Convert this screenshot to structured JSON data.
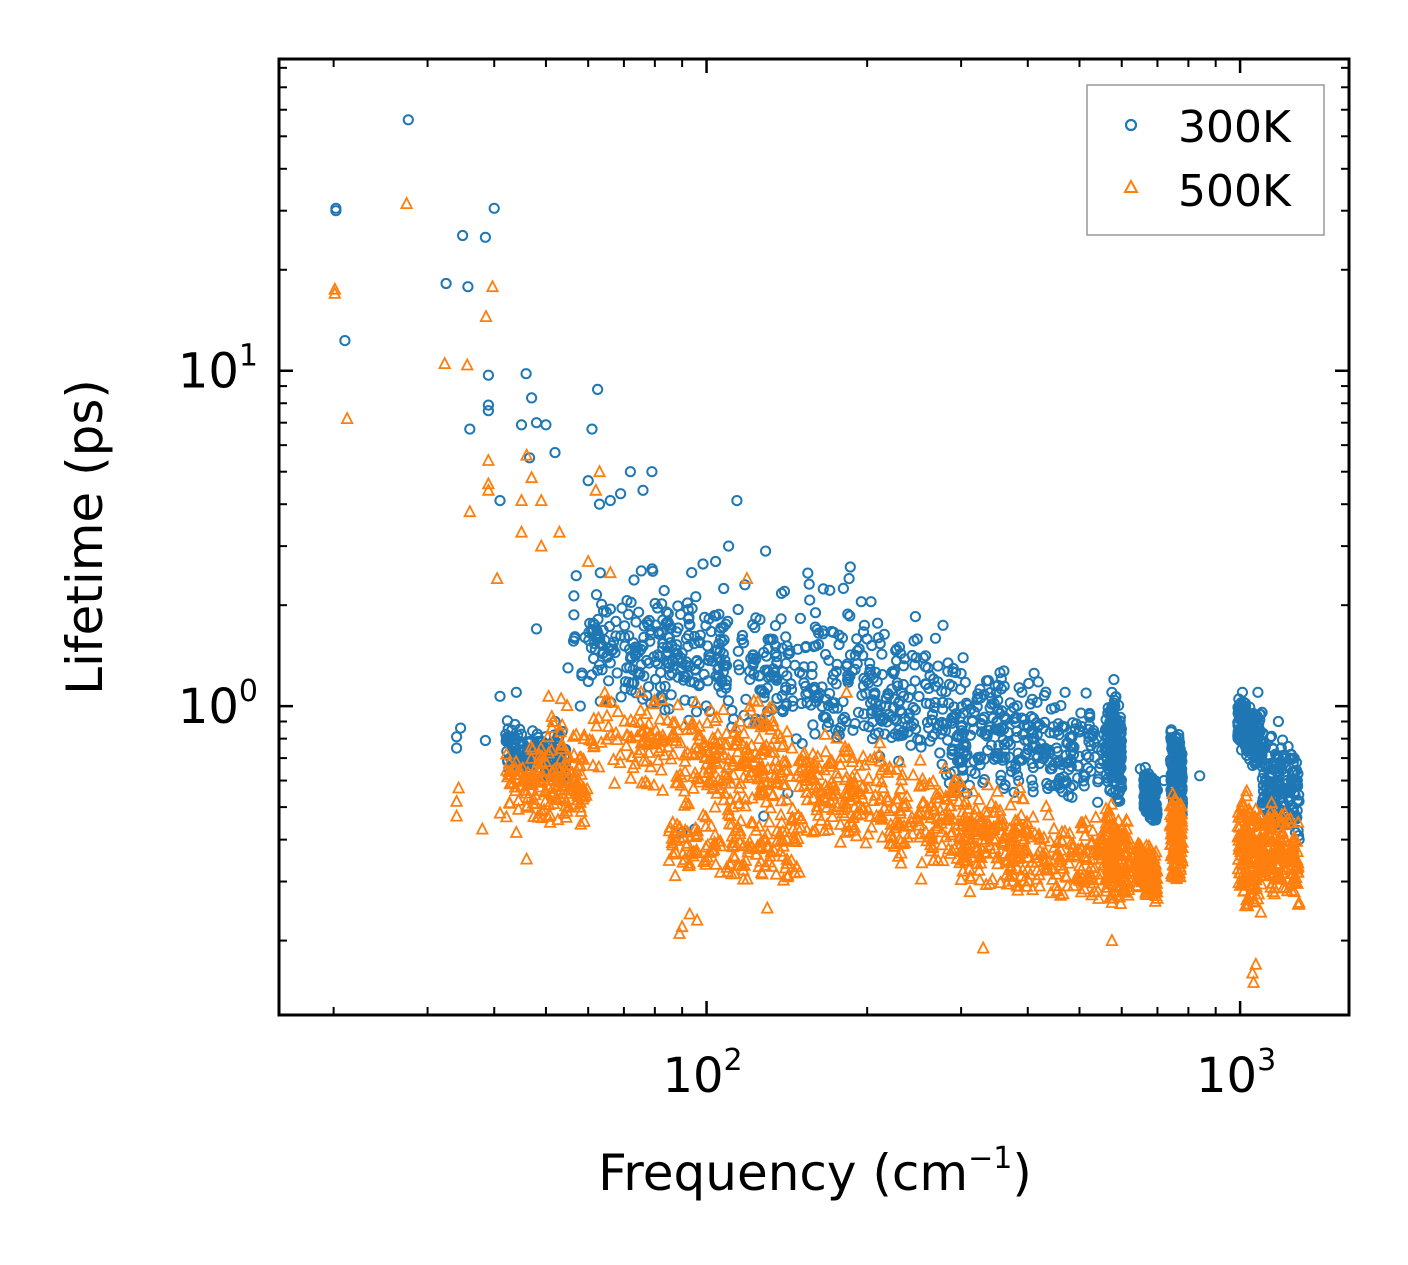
{
  "chart_data": {
    "type": "scatter",
    "title": "",
    "xlabel": "Frequency (cm",
    "xlabel_sup": "−1",
    "xlabel_end": ")",
    "ylabel": "Lifetime (ps)",
    "x_scale": "log",
    "y_scale": "log",
    "xlim": [
      15.8,
      1600
    ],
    "ylim": [
      0.12,
      85
    ],
    "grid": false,
    "legend_position": "top-right",
    "x_ticks": [
      {
        "value": 100,
        "base": "10",
        "exp": "2"
      },
      {
        "value": 1000,
        "base": "10",
        "exp": "3"
      }
    ],
    "y_ticks": [
      {
        "value": 1,
        "base": "10",
        "exp": "0"
      },
      {
        "value": 10,
        "base": "10",
        "exp": "1"
      }
    ],
    "series": [
      {
        "name": "300K",
        "color": "#1f77b4",
        "marker": "circle",
        "points": [
          [
            20.2,
            30.5
          ],
          [
            20.2,
            30.0
          ],
          [
            21.0,
            12.3
          ],
          [
            27.6,
            56.0
          ],
          [
            32.5,
            18.2
          ],
          [
            34.9,
            25.3
          ],
          [
            35.7,
            17.8
          ],
          [
            38.5,
            25.0
          ],
          [
            40.0,
            30.5
          ],
          [
            39.0,
            9.7
          ],
          [
            39.0,
            7.9
          ],
          [
            39.0,
            7.6
          ],
          [
            41.0,
            4.1
          ],
          [
            36.0,
            6.7
          ],
          [
            45.9,
            9.8
          ],
          [
            47.0,
            8.3
          ],
          [
            50.0,
            6.9
          ],
          [
            48.0,
            7.0
          ],
          [
            45.0,
            6.9
          ],
          [
            46.6,
            5.5
          ],
          [
            52.0,
            5.7
          ],
          [
            61.0,
            6.7
          ],
          [
            62.5,
            8.8
          ],
          [
            60.0,
            4.7
          ],
          [
            63.0,
            4.0
          ],
          [
            66.0,
            4.1
          ],
          [
            69.0,
            4.3
          ],
          [
            72.0,
            5.0
          ],
          [
            76.0,
            4.4
          ],
          [
            79.0,
            5.0
          ],
          [
            114.0,
            4.1
          ],
          [
            110.0,
            3.0
          ],
          [
            129.0,
            2.9
          ],
          [
            104.0,
            2.7
          ],
          [
            186.0,
            2.6
          ],
          [
            185.0,
            2.4
          ],
          [
            118.0,
            2.3
          ],
          [
            140.0,
            2.2
          ],
          [
            160.0,
            1.9
          ],
          [
            210.0,
            1.6
          ],
          [
            230.0,
            1.5
          ],
          [
            260.0,
            1.3
          ],
          [
            300.0,
            1.25
          ],
          [
            390.0,
            1.1
          ],
          [
            470.0,
            1.1
          ],
          [
            580.0,
            1.2
          ],
          [
            575.0,
            1.1
          ],
          [
            1010.0,
            1.1
          ],
          [
            1080.0,
            1.1
          ],
          [
            1180.0,
            0.9
          ],
          [
            48.0,
            1.7
          ],
          [
            44.0,
            1.1
          ],
          [
            41.0,
            1.07
          ],
          [
            34.0,
            0.75
          ],
          [
            34.6,
            0.86
          ],
          [
            38.5,
            0.79
          ],
          [
            34.0,
            0.81
          ],
          [
            55.0,
            1.3
          ],
          [
            58.0,
            1.0
          ],
          [
            52.0,
            0.9
          ],
          [
            90.0,
            0.42
          ],
          [
            95.0,
            0.43
          ],
          [
            128.0,
            0.47
          ],
          [
            142.0,
            0.55
          ],
          [
            760.0,
            0.52
          ],
          [
            680.0,
            0.5
          ],
          [
            1290.0,
            0.4
          ],
          [
            1270.0,
            0.42
          ],
          [
            440.0,
            0.58
          ],
          [
            590.0,
            0.52
          ],
          [
            300.0,
            0.68
          ],
          [
            350.0,
            0.9
          ],
          [
            420.0,
            0.88
          ],
          [
            500.0,
            0.85
          ],
          [
            650.0,
            0.65
          ],
          [
            720.0,
            0.6
          ],
          [
            840.0,
            0.62
          ],
          [
            1050.0,
            0.8
          ],
          [
            1150.0,
            0.75
          ],
          [
            1240.0,
            0.7
          ]
        ],
        "clusters": [
          {
            "x": [
              56,
              210
            ],
            "y": [
              0.9,
              3.0
            ]
          },
          {
            "x": [
              80,
              300
            ],
            "y": [
              0.8,
              2.1
            ]
          },
          {
            "x": [
              120,
              450
            ],
            "y": [
              0.75,
              1.6
            ]
          },
          {
            "x": [
              200,
              600
            ],
            "y": [
              0.65,
              1.25
            ]
          },
          {
            "x": [
              280,
              560
            ],
            "y": [
              0.55,
              1.0
            ]
          },
          {
            "x": [
              560,
              600
            ],
            "y": [
              0.55,
              1.2
            ]
          },
          {
            "x": [
              660,
              700
            ],
            "y": [
              0.48,
              0.68
            ]
          },
          {
            "x": [
              740,
              780
            ],
            "y": [
              0.5,
              0.92
            ]
          },
          {
            "x": [
              990,
              1100
            ],
            "y": [
              0.7,
              1.1
            ]
          },
          {
            "x": [
              1100,
              1290
            ],
            "y": [
              0.42,
              0.9
            ]
          },
          {
            "x": [
              42,
              55
            ],
            "y": [
              0.62,
              0.95
            ]
          },
          {
            "x": [
              60,
              110
            ],
            "y": [
              1.0,
              2.3
            ]
          }
        ]
      },
      {
        "name": "500K",
        "color": "#ff7f0e",
        "marker": "triangle",
        "points": [
          [
            20.1,
            17.5
          ],
          [
            20.1,
            17.0
          ],
          [
            21.2,
            7.2
          ],
          [
            27.4,
            31.5
          ],
          [
            32.3,
            10.5
          ],
          [
            35.6,
            10.4
          ],
          [
            38.6,
            14.5
          ],
          [
            39.7,
            17.8
          ],
          [
            39.0,
            5.4
          ],
          [
            39.0,
            4.6
          ],
          [
            39.0,
            4.4
          ],
          [
            36.0,
            3.8
          ],
          [
            40.5,
            2.4
          ],
          [
            46.0,
            5.6
          ],
          [
            45.0,
            4.1
          ],
          [
            47.0,
            4.8
          ],
          [
            45.0,
            3.3
          ],
          [
            49.0,
            4.1
          ],
          [
            53.0,
            3.3
          ],
          [
            49.0,
            3.0
          ],
          [
            60.0,
            2.7
          ],
          [
            63.0,
            5.0
          ],
          [
            62.0,
            4.4
          ],
          [
            66.0,
            2.5
          ],
          [
            119.0,
            2.4
          ],
          [
            183.0,
            1.1
          ],
          [
            34.0,
            0.52
          ],
          [
            34.0,
            0.47
          ],
          [
            34.3,
            0.57
          ],
          [
            38.0,
            0.43
          ],
          [
            41.0,
            0.48
          ],
          [
            44.0,
            0.42
          ],
          [
            46.0,
            0.35
          ],
          [
            90.0,
            0.22
          ],
          [
            93.0,
            0.24
          ],
          [
            96.0,
            0.23
          ],
          [
            89.0,
            0.21
          ],
          [
            130.0,
            0.25
          ],
          [
            1060.0,
            0.15
          ],
          [
            1055.0,
            0.16
          ],
          [
            1070.0,
            0.17
          ],
          [
            330.0,
            0.19
          ],
          [
            575.0,
            0.2
          ],
          [
            760.0,
            0.31
          ],
          [
            1290.0,
            0.26
          ]
        ],
        "clusters": [
          {
            "x": [
              50,
              140
            ],
            "y": [
              0.6,
              1.2
            ]
          },
          {
            "x": [
              70,
              200
            ],
            "y": [
              0.5,
              1.0
            ]
          },
          {
            "x": [
              100,
              300
            ],
            "y": [
              0.45,
              0.85
            ]
          },
          {
            "x": [
              150,
              400
            ],
            "y": [
              0.38,
              0.7
            ]
          },
          {
            "x": [
              220,
              560
            ],
            "y": [
              0.3,
              0.58
            ]
          },
          {
            "x": [
              300,
              550
            ],
            "y": [
              0.28,
              0.48
            ]
          },
          {
            "x": [
              560,
              620
            ],
            "y": [
              0.26,
              0.55
            ]
          },
          {
            "x": [
              640,
              700
            ],
            "y": [
              0.28,
              0.42
            ]
          },
          {
            "x": [
              740,
              780
            ],
            "y": [
              0.3,
              0.6
            ]
          },
          {
            "x": [
              990,
              1100
            ],
            "y": [
              0.25,
              0.62
            ]
          },
          {
            "x": [
              1100,
              1290
            ],
            "y": [
              0.27,
              0.55
            ]
          },
          {
            "x": [
              42,
              60
            ],
            "y": [
              0.45,
              0.8
            ]
          },
          {
            "x": [
              85,
              150
            ],
            "y": [
              0.3,
              0.55
            ]
          }
        ]
      }
    ]
  }
}
